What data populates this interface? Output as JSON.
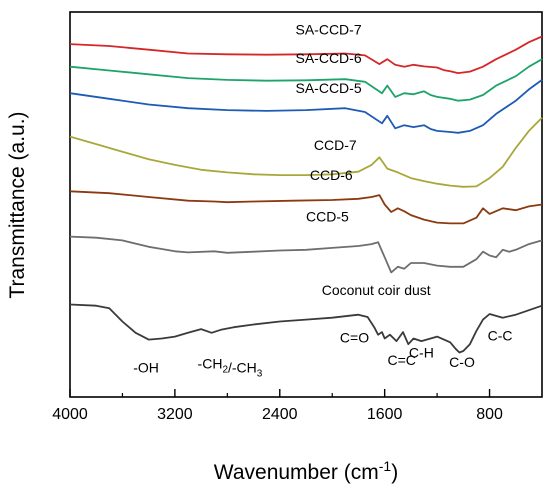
{
  "chart_data": {
    "type": "line",
    "title": "",
    "xlabel": "Wavenumber (cm",
    "xlabel_sup": "-1",
    "xlabel_end": ")",
    "ylabel": "Transmittance (a.u.)",
    "xlim": [
      4000,
      400
    ],
    "x_reversed": true,
    "y_units": "a.u. (curves vertically offset)",
    "xticks": [
      4000,
      3200,
      2400,
      1600,
      800
    ],
    "xtick_labels": [
      "4000",
      "3200",
      "2400",
      "1600",
      "800"
    ],
    "y_ticks_shown": false,
    "grid": false,
    "legend": "none (curves labelled directly)",
    "series": [
      {
        "name": "SA-CCD-7",
        "color": "#d62728",
        "x": [
          4000,
          3700,
          3400,
          3100,
          2800,
          2500,
          2200,
          1900,
          1750,
          1640,
          1580,
          1520,
          1450,
          1380,
          1300,
          1200,
          1150,
          1100,
          1040,
          950,
          850,
          750,
          600,
          500,
          400
        ],
        "y": [
          8.35,
          8.3,
          8.2,
          8.1,
          8.08,
          8.07,
          8.08,
          8.1,
          8.05,
          7.82,
          7.95,
          7.8,
          7.75,
          7.8,
          7.76,
          7.73,
          7.66,
          7.63,
          7.58,
          7.62,
          7.75,
          7.95,
          8.2,
          8.4,
          8.55
        ]
      },
      {
        "name": "SA-CCD-6",
        "color": "#1fa36a",
        "x": [
          4000,
          3700,
          3400,
          3100,
          2800,
          2500,
          2200,
          1900,
          1750,
          1620,
          1580,
          1520,
          1450,
          1380,
          1300,
          1250,
          1200,
          1100,
          1040,
          950,
          850,
          750,
          600,
          500,
          400
        ],
        "y": [
          7.75,
          7.65,
          7.55,
          7.45,
          7.4,
          7.38,
          7.39,
          7.42,
          7.35,
          7.05,
          7.25,
          6.95,
          7.05,
          7.02,
          7.1,
          7.0,
          6.95,
          6.9,
          6.85,
          6.88,
          7.0,
          7.25,
          7.5,
          7.75,
          7.95
        ]
      },
      {
        "name": "SA-CCD-5",
        "color": "#1e5bb5",
        "x": [
          4000,
          3700,
          3400,
          3100,
          2800,
          2500,
          2200,
          1900,
          1750,
          1620,
          1580,
          1520,
          1450,
          1380,
          1300,
          1250,
          1200,
          1100,
          1040,
          950,
          850,
          750,
          600,
          500,
          400
        ],
        "y": [
          7.05,
          6.9,
          6.75,
          6.65,
          6.6,
          6.58,
          6.6,
          6.65,
          6.55,
          6.25,
          6.45,
          6.12,
          6.2,
          6.15,
          6.2,
          6.1,
          6.05,
          6.02,
          6.0,
          6.05,
          6.2,
          6.5,
          6.85,
          7.15,
          7.4
        ]
      },
      {
        "name": "CCD-7",
        "color": "#a8a83a",
        "x": [
          4000,
          3800,
          3600,
          3400,
          3200,
          3000,
          2800,
          2600,
          2400,
          2200,
          2000,
          1800,
          1700,
          1640,
          1580,
          1500,
          1400,
          1300,
          1200,
          1100,
          1000,
          900,
          800,
          700,
          600,
          500,
          400
        ],
        "y": [
          5.9,
          5.7,
          5.5,
          5.3,
          5.15,
          5.02,
          4.95,
          4.9,
          4.88,
          4.88,
          4.9,
          4.97,
          5.15,
          5.35,
          5.05,
          4.95,
          4.8,
          4.72,
          4.65,
          4.6,
          4.57,
          4.58,
          4.8,
          5.1,
          5.6,
          6.05,
          6.4
        ]
      },
      {
        "name": "CCD-6",
        "color": "#8b3a10",
        "x": [
          4000,
          3700,
          3400,
          3100,
          2900,
          2800,
          2600,
          2300,
          2000,
          1800,
          1700,
          1640,
          1600,
          1550,
          1500,
          1450,
          1400,
          1300,
          1200,
          1100,
          1000,
          900,
          850,
          800,
          700,
          600,
          500,
          400
        ],
        "y": [
          4.45,
          4.4,
          4.3,
          4.2,
          4.18,
          4.16,
          4.18,
          4.2,
          4.22,
          4.25,
          4.3,
          4.35,
          4.1,
          3.9,
          4.0,
          3.92,
          3.82,
          3.7,
          3.62,
          3.6,
          3.6,
          3.75,
          4.0,
          3.85,
          4.0,
          3.95,
          4.05,
          4.1
        ]
      },
      {
        "name": "CCD-5",
        "color": "#6e6e6e",
        "x": [
          4000,
          3800,
          3600,
          3400,
          3300,
          3200,
          3100,
          2900,
          2800,
          2600,
          2400,
          2200,
          2000,
          1800,
          1700,
          1650,
          1600,
          1550,
          1500,
          1450,
          1400,
          1300,
          1200,
          1100,
          1000,
          900,
          850,
          800,
          750,
          700,
          650,
          600,
          500,
          400
        ],
        "y": [
          3.25,
          3.22,
          3.15,
          2.98,
          2.92,
          2.86,
          2.83,
          2.86,
          2.82,
          2.85,
          2.88,
          2.9,
          2.95,
          3.0,
          3.05,
          3.1,
          2.7,
          2.3,
          2.45,
          2.4,
          2.55,
          2.55,
          2.48,
          2.45,
          2.45,
          2.65,
          2.85,
          2.75,
          2.7,
          2.9,
          2.85,
          2.9,
          3.05,
          3.15
        ]
      },
      {
        "name": "Coconut coir dust",
        "color": "#3a3a3a",
        "x": [
          4000,
          3800,
          3700,
          3600,
          3500,
          3400,
          3300,
          3200,
          3100,
          3000,
          2920,
          2850,
          2750,
          2600,
          2400,
          2200,
          2000,
          1800,
          1730,
          1680,
          1650,
          1620,
          1600,
          1560,
          1510,
          1460,
          1420,
          1380,
          1320,
          1250,
          1200,
          1100,
          1060,
          1030,
          1000,
          950,
          900,
          850,
          800,
          700,
          600,
          500,
          400
        ],
        "y": [
          1.45,
          1.42,
          1.35,
          1.0,
          0.7,
          0.52,
          0.55,
          0.6,
          0.7,
          0.8,
          0.7,
          0.78,
          0.85,
          0.92,
          1.0,
          1.05,
          1.1,
          1.18,
          1.12,
          0.85,
          0.65,
          0.72,
          0.55,
          0.65,
          0.48,
          0.72,
          0.4,
          0.55,
          0.48,
          0.55,
          0.6,
          0.45,
          0.28,
          0.18,
          0.22,
          0.4,
          0.75,
          1.05,
          1.2,
          1.1,
          1.18,
          1.3,
          1.42
        ]
      }
    ],
    "annotations": [
      {
        "text": "-OH",
        "x": 3420,
        "y": -0.35
      },
      {
        "text": "-CH2/-CH3",
        "x": 2780,
        "y": -0.25
      },
      {
        "text": "C=O",
        "x": 1830,
        "y": 0.45
      },
      {
        "text": "C=C",
        "x": 1470,
        "y": -0.15
      },
      {
        "text": "C-H",
        "x": 1320,
        "y": 0.05
      },
      {
        "text": "C-O",
        "x": 1010,
        "y": -0.2
      },
      {
        "text": "C-C",
        "x": 720,
        "y": 0.5
      }
    ],
    "series_labels": [
      {
        "name": "SA-CCD-7",
        "x": 2280,
        "y": 8.6
      },
      {
        "name": "SA-CCD-6",
        "x": 2280,
        "y": 7.85
      },
      {
        "name": "SA-CCD-5",
        "x": 2280,
        "y": 7.05
      },
      {
        "name": "CCD-7",
        "x": 2140,
        "y": 5.55
      },
      {
        "name": "CCD-6",
        "x": 2170,
        "y": 4.75
      },
      {
        "name": "CCD-5",
        "x": 2200,
        "y": 3.65
      },
      {
        "name": "Coconut coir dust",
        "x": 2080,
        "y": 1.7
      }
    ]
  }
}
